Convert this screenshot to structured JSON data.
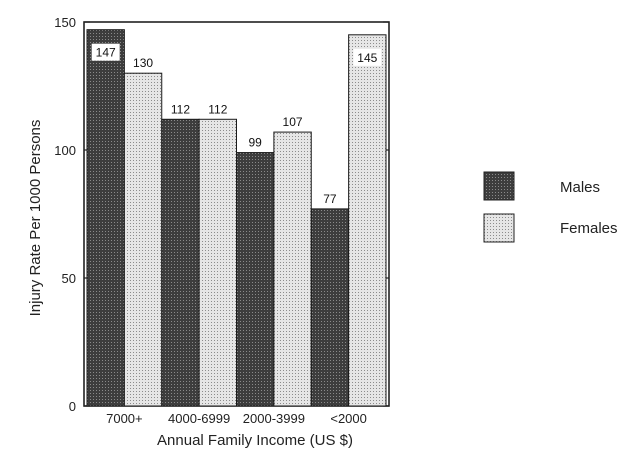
{
  "chart_data": {
    "type": "bar",
    "categories": [
      "7000+",
      "4000-6999",
      "2000-3999",
      "<2000"
    ],
    "series": [
      {
        "name": "Males",
        "values": [
          147,
          112,
          99,
          77
        ],
        "color": "#4a4a4a"
      },
      {
        "name": "Females",
        "values": [
          130,
          112,
          107,
          145
        ],
        "color": "#d2d2d2"
      }
    ],
    "xlabel": "Annual Family Income (US $)",
    "ylabel": "Injury Rate Per 1000 Persons",
    "ylim": [
      0,
      150
    ],
    "yticks": [
      0,
      50,
      100,
      150
    ],
    "legend_position": "right",
    "grid": false
  }
}
